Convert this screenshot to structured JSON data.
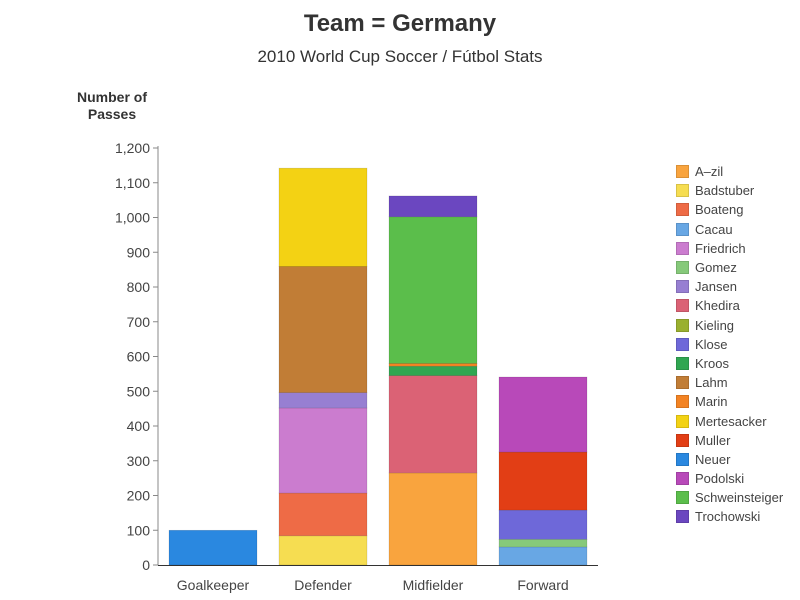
{
  "chart_data": {
    "type": "bar",
    "stacked": true,
    "title": "Team = Germany",
    "subtitle": "2010 World Cup Soccer / Fútbol Stats",
    "ylabel": "Number of Passes",
    "xlabel": "",
    "ylim": [
      0,
      1200
    ],
    "yticks": [
      "0",
      "100",
      "200",
      "300",
      "400",
      "500",
      "600",
      "700",
      "800",
      "900",
      "1,000",
      "1,100",
      "1,200"
    ],
    "grid": false,
    "legend_position": "right",
    "categories": [
      "Goalkeeper",
      "Defender",
      "Midfielder",
      "Forward"
    ],
    "series": [
      {
        "name": "A–zil",
        "color": "#F9A43E",
        "values": [
          0,
          0,
          265,
          0
        ]
      },
      {
        "name": "Badstuber",
        "color": "#F6DD51",
        "values": [
          0,
          84,
          0,
          0
        ]
      },
      {
        "name": "Boateng",
        "color": "#EE6B46",
        "values": [
          0,
          123,
          0,
          0
        ]
      },
      {
        "name": "Cacau",
        "color": "#68A7E4",
        "values": [
          0,
          0,
          0,
          52
        ]
      },
      {
        "name": "Friedrich",
        "color": "#CB7CCF",
        "values": [
          0,
          245,
          0,
          0
        ]
      },
      {
        "name": "Gomez",
        "color": "#86C97A",
        "values": [
          0,
          0,
          0,
          22
        ]
      },
      {
        "name": "Jansen",
        "color": "#977FD2",
        "values": [
          0,
          44,
          0,
          0
        ]
      },
      {
        "name": "Khedira",
        "color": "#DB6275",
        "values": [
          0,
          0,
          280,
          0
        ]
      },
      {
        "name": "Kieling",
        "color": "#9AB02F",
        "values": [
          0,
          0,
          0,
          0
        ]
      },
      {
        "name": "Klose",
        "color": "#6E68D9",
        "values": [
          0,
          0,
          0,
          84
        ]
      },
      {
        "name": "Kroos",
        "color": "#30A651",
        "values": [
          0,
          0,
          27,
          0
        ]
      },
      {
        "name": "Lahm",
        "color": "#C17D36",
        "values": [
          0,
          363,
          0,
          0
        ]
      },
      {
        "name": "Marin",
        "color": "#F38323",
        "values": [
          0,
          0,
          8,
          0
        ]
      },
      {
        "name": "Mertesacker",
        "color": "#F3D214",
        "values": [
          0,
          283,
          0,
          0
        ]
      },
      {
        "name": "Muller",
        "color": "#E23E15",
        "values": [
          0,
          0,
          0,
          167
        ]
      },
      {
        "name": "Neuer",
        "color": "#2A88E0",
        "values": [
          100,
          0,
          0,
          0
        ]
      },
      {
        "name": "Podolski",
        "color": "#B849B9",
        "values": [
          0,
          0,
          0,
          216
        ]
      },
      {
        "name": "Schweinsteiger",
        "color": "#5BBE4B",
        "values": [
          0,
          0,
          422,
          0
        ]
      },
      {
        "name": "Trochowski",
        "color": "#6B47C0",
        "values": [
          0,
          0,
          60,
          0
        ]
      }
    ]
  }
}
